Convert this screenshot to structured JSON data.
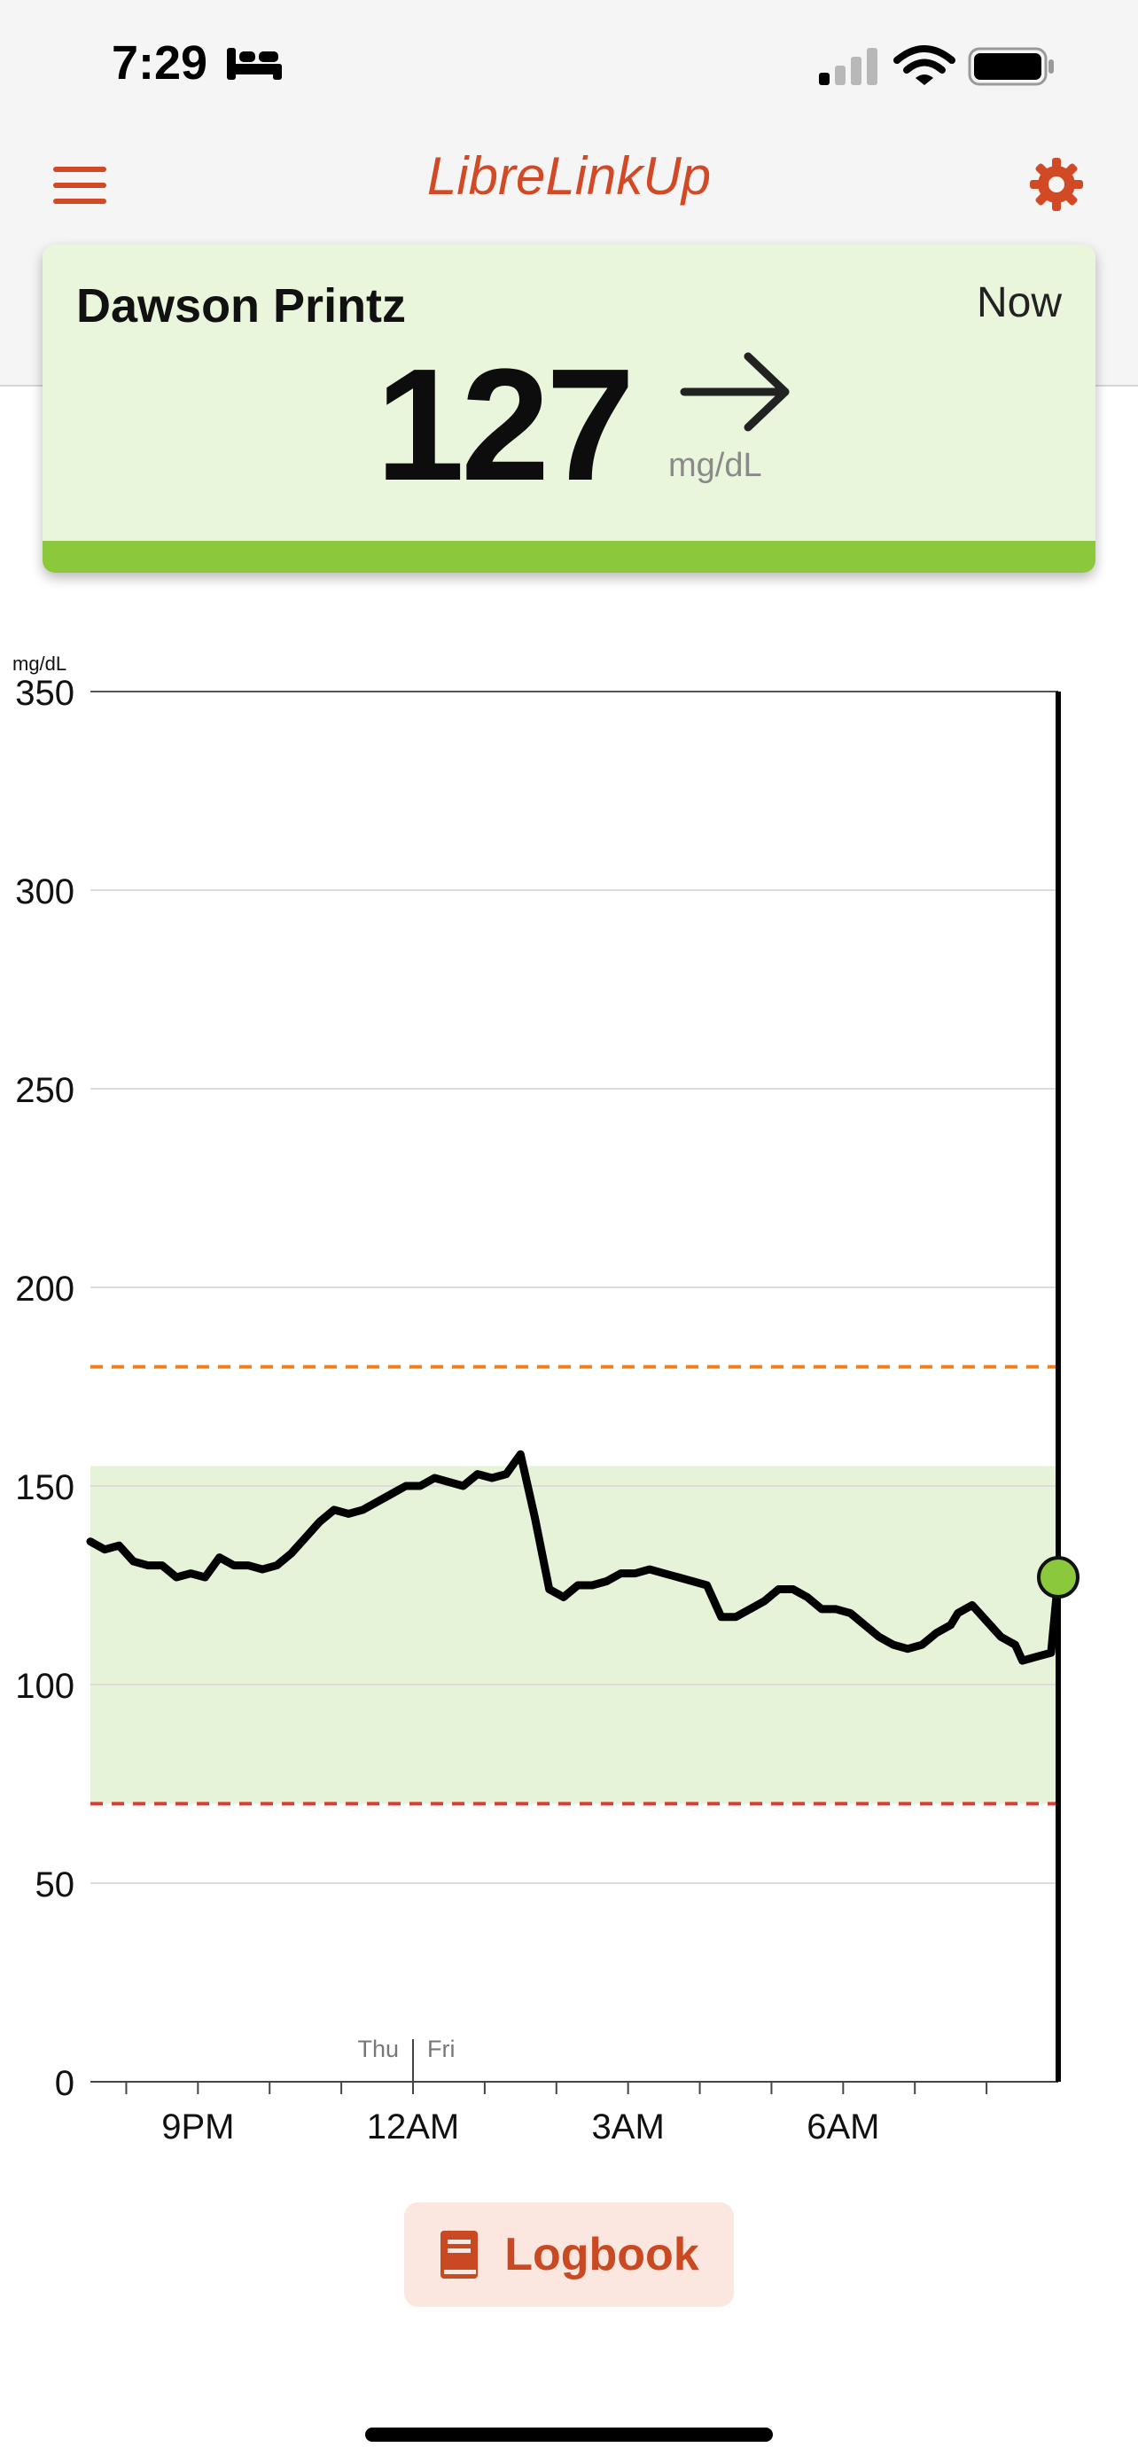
{
  "status_bar": {
    "time": "7:29"
  },
  "header": {
    "app_title": "LibreLinkUp"
  },
  "reading": {
    "patient_name": "Dawson Printz",
    "time_label": "Now",
    "value": "127",
    "unit": "mg/dL",
    "trend": "steady"
  },
  "colors": {
    "brand": "#d24a25",
    "in_range_bar": "#8cc83c",
    "target_band": "#e6f3d8",
    "high_line": "#f07e1e",
    "low_line": "#dc3c32",
    "current_point": "#8cc83c"
  },
  "chart_data": {
    "type": "line",
    "ylabel": "mg/dL",
    "ylim": [
      0,
      350
    ],
    "yticks": [
      0,
      50,
      100,
      150,
      200,
      250,
      300,
      350
    ],
    "x_labels": [
      "9PM",
      "12AM",
      "3AM",
      "6AM"
    ],
    "day_labels": [
      "Thu",
      "Fri"
    ],
    "target_range": [
      70,
      155
    ],
    "high_threshold": 180,
    "low_threshold": 70,
    "x_hours_since_9pm": [
      -1.5,
      -1.3,
      -1.1,
      -0.9,
      -0.7,
      -0.5,
      -0.3,
      -0.1,
      0.1,
      0.3,
      0.5,
      0.7,
      0.9,
      1.1,
      1.3,
      1.5,
      1.7,
      1.9,
      2.1,
      2.3,
      2.5,
      2.7,
      2.9,
      3.1,
      3.3,
      3.5,
      3.7,
      3.9,
      4.1,
      4.3,
      4.5,
      4.7,
      4.9,
      5.1,
      5.3,
      5.5,
      5.7,
      5.9,
      6.1,
      6.3,
      6.5,
      6.7,
      6.9,
      7.1,
      7.3,
      7.5,
      7.7,
      7.9,
      8.1,
      8.3,
      8.5,
      8.7,
      8.9,
      9.1,
      9.3,
      9.5,
      9.7,
      9.9,
      10.1,
      10.3,
      10.5,
      10.6,
      10.8,
      11.0,
      11.2,
      11.4,
      11.5,
      11.7,
      11.9,
      12.0
    ],
    "values": [
      136,
      134,
      135,
      131,
      130,
      130,
      127,
      128,
      127,
      132,
      130,
      130,
      129,
      130,
      133,
      137,
      141,
      144,
      143,
      144,
      146,
      148,
      150,
      150,
      152,
      151,
      150,
      153,
      152,
      153,
      158,
      142,
      124,
      122,
      125,
      125,
      126,
      128,
      128,
      129,
      128,
      127,
      126,
      125,
      117,
      117,
      119,
      121,
      124,
      124,
      122,
      119,
      119,
      118,
      115,
      112,
      110,
      109,
      110,
      113,
      115,
      118,
      120,
      116,
      112,
      110,
      106,
      107,
      108,
      127
    ],
    "current": {
      "value": 127,
      "x_hours_since_9pm": 12.0
    }
  }
}
